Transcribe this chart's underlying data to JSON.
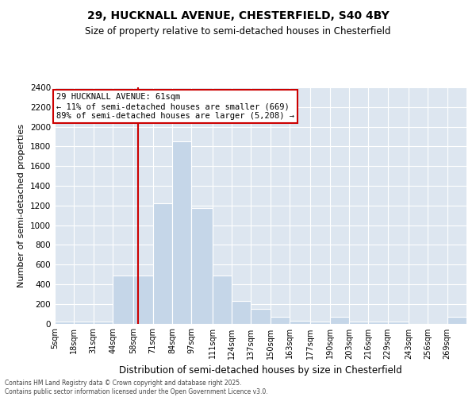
{
  "title1": "29, HUCKNALL AVENUE, CHESTERFIELD, S40 4BY",
  "title2": "Size of property relative to semi-detached houses in Chesterfield",
  "xlabel": "Distribution of semi-detached houses by size in Chesterfield",
  "ylabel": "Number of semi-detached properties",
  "annotation_title": "29 HUCKNALL AVENUE: 61sqm",
  "annotation_line1": "← 11% of semi-detached houses are smaller (669)",
  "annotation_line2": "89% of semi-detached houses are larger (5,208) →",
  "footer1": "Contains HM Land Registry data © Crown copyright and database right 2025.",
  "footer2": "Contains public sector information licensed under the Open Government Licence v3.0.",
  "property_size_sqm": 61,
  "bin_labels": [
    "5sqm",
    "18sqm",
    "31sqm",
    "44sqm",
    "58sqm",
    "71sqm",
    "84sqm",
    "97sqm",
    "111sqm",
    "124sqm",
    "137sqm",
    "150sqm",
    "163sqm",
    "177sqm",
    "190sqm",
    "203sqm",
    "216sqm",
    "229sqm",
    "243sqm",
    "256sqm",
    "269sqm"
  ],
  "bin_edges": [
    5,
    18,
    31,
    44,
    58,
    71,
    84,
    97,
    111,
    124,
    137,
    150,
    163,
    177,
    190,
    203,
    216,
    229,
    243,
    256,
    269,
    282
  ],
  "counts": [
    20,
    20,
    20,
    490,
    490,
    1220,
    1850,
    1170,
    490,
    230,
    150,
    70,
    30,
    20,
    70,
    20,
    20,
    20,
    0,
    0,
    70
  ],
  "bar_color": "#c5d6e8",
  "highlight_color": "#cc0000",
  "ylim": [
    0,
    2400
  ],
  "yticks": [
    0,
    200,
    400,
    600,
    800,
    1000,
    1200,
    1400,
    1600,
    1800,
    2000,
    2200,
    2400
  ],
  "background_color": "#dde6f0"
}
